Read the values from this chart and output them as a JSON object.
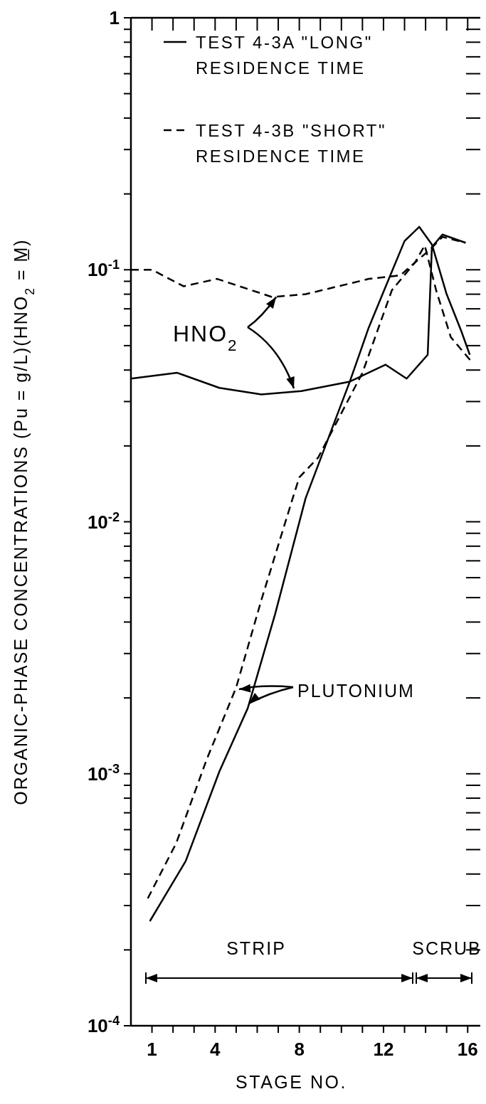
{
  "chart_data": {
    "type": "line",
    "xlabel": "STAGE NO.",
    "ylabel": "ORGANIC-PHASE CONCENTRATIONS (Pu = g/L)(HNO$_{2}$ = M̲)",
    "log": "y",
    "legend": "top",
    "grid": false,
    "marker": "none",
    "xlim": [
      0,
      16.6
    ],
    "xticks": [
      1,
      {
        "value": 2,
        "label": null
      },
      {
        "value": 3,
        "label": null
      },
      4,
      {
        "value": 5,
        "label": null
      },
      {
        "value": 6,
        "label": null
      },
      {
        "value": 7,
        "label": null
      },
      8,
      {
        "value": 9,
        "label": null
      },
      {
        "value": 10,
        "label": null
      },
      {
        "value": 11,
        "label": null
      },
      12,
      {
        "value": 13,
        "label": null
      },
      {
        "value": 14,
        "label": null
      },
      {
        "value": 15,
        "label": null
      },
      16
    ],
    "ylim": [
      0.0001,
      1
    ],
    "yticks": [
      {
        "value": 0.0001,
        "label": "10$^{-4}$"
      },
      {
        "value": 0.0002,
        "label": null
      },
      {
        "value": 0.0003,
        "label": null
      },
      {
        "value": 0.0004,
        "label": null
      },
      {
        "value": 0.0005,
        "label": null
      },
      {
        "value": 0.0006,
        "label": null
      },
      {
        "value": 0.0007,
        "label": null
      },
      {
        "value": 0.0008,
        "label": null
      },
      {
        "value": 0.0009,
        "label": null
      },
      {
        "value": 0.001,
        "label": "10$^{-3}$"
      },
      {
        "value": 0.002,
        "label": null
      },
      {
        "value": 0.003,
        "label": null
      },
      {
        "value": 0.004,
        "label": null
      },
      {
        "value": 0.005,
        "label": null
      },
      {
        "value": 0.006,
        "label": null
      },
      {
        "value": 0.007,
        "label": null
      },
      {
        "value": 0.008,
        "label": null
      },
      {
        "value": 0.009,
        "label": null
      },
      {
        "value": 0.01,
        "label": "10$^{-2}$"
      },
      {
        "value": 0.02,
        "label": null
      },
      {
        "value": 0.03,
        "label": null
      },
      {
        "value": 0.04,
        "label": null
      },
      {
        "value": 0.05,
        "label": null
      },
      {
        "value": 0.06,
        "label": null
      },
      {
        "value": 0.07,
        "label": null
      },
      {
        "value": 0.08,
        "label": null
      },
      {
        "value": 0.09,
        "label": null
      },
      {
        "value": 0.1,
        "label": "10$^{-1}$"
      },
      {
        "value": 0.2,
        "label": null
      },
      {
        "value": 0.3,
        "label": null
      },
      {
        "value": 0.4,
        "label": null
      },
      {
        "value": 0.5,
        "label": null
      },
      {
        "value": 0.6,
        "label": null
      },
      {
        "value": 0.7,
        "label": null
      },
      {
        "value": 0.8,
        "label": null
      },
      {
        "value": 0.9,
        "label": null
      },
      1
    ],
    "series": [
      {
        "name": "TEST 4-3A \"LONG\" RESIDENCE TIME",
        "color": "#000000",
        "line_style": "solid",
        "x": [
          0,
          2.2,
          4.2,
          6.2,
          8.1,
          10.4,
          12.1,
          13.1,
          14.1,
          14.3,
          14.8,
          15.9
        ],
        "values": [
          0.037,
          0.039,
          0.034,
          0.032,
          0.033,
          0.036,
          0.042,
          0.037,
          0.046,
          0.123,
          0.138,
          0.128
        ]
      },
      {
        "name": "TEST 4-3B \"SHORT\" RESIDENCE TIME",
        "color": "#000000",
        "line_style": "dashed",
        "x": [
          0,
          1,
          2.5,
          4.1,
          6.7,
          8.3,
          11.3,
          12.8,
          13.5,
          14.2,
          14.8,
          15.9
        ],
        "values": [
          0.1,
          0.1,
          0.086,
          0.092,
          0.078,
          0.08,
          0.092,
          0.095,
          0.107,
          0.12,
          0.135,
          0.128
        ]
      },
      {
        "color": "#000000",
        "line_style": "solid",
        "x": [
          0.9,
          2.6,
          4.2,
          5.55,
          6.85,
          8.3,
          10.4,
          11.3,
          12.3,
          13.0,
          13.7,
          14.3,
          15.0,
          15.7,
          16.1
        ],
        "values": [
          0.00026,
          0.00045,
          0.00102,
          0.00182,
          0.0043,
          0.0124,
          0.036,
          0.059,
          0.094,
          0.13,
          0.148,
          0.126,
          0.08,
          0.057,
          0.046
        ]
      },
      {
        "color": "#000000",
        "line_style": "dashed",
        "x": [
          0.8,
          2.15,
          3.6,
          5.0,
          6.2,
          7.7,
          8.0,
          8.9,
          11.0,
          12.4,
          13.5,
          13.96,
          14.5,
          15.2,
          16.2
        ],
        "values": [
          0.00032,
          0.00053,
          0.00114,
          0.0022,
          0.0049,
          0.0125,
          0.015,
          0.018,
          0.039,
          0.083,
          0.107,
          0.125,
          0.083,
          0.054,
          0.043
        ]
      }
    ],
    "annotations": [
      {
        "text": "HNO$_{2}$",
        "x": 6.9,
        "y": 0.078
      },
      {
        "text": "PLUTONIUM",
        "x": 5.6,
        "y": 0.0019
      },
      "STRIP",
      "SCRUB"
    ]
  }
}
